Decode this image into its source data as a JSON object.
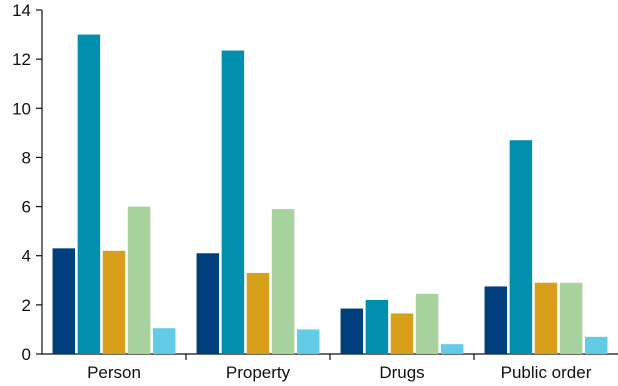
{
  "chart_data": {
    "type": "bar",
    "categories": [
      "Person",
      "Property",
      "Drugs",
      "Public order"
    ],
    "series": [
      {
        "color": "#003f7d",
        "values": [
          4.3,
          4.1,
          1.85,
          2.75
        ]
      },
      {
        "color": "#0090ad",
        "values": [
          13.0,
          12.35,
          2.2,
          8.7
        ]
      },
      {
        "color": "#d8a01a",
        "values": [
          4.2,
          3.3,
          1.65,
          2.9
        ]
      },
      {
        "color": "#a9d39e",
        "values": [
          6.0,
          5.9,
          2.45,
          2.9
        ]
      },
      {
        "color": "#63cbe6",
        "values": [
          1.05,
          1.0,
          0.4,
          0.7
        ]
      }
    ],
    "yticks": [
      "0",
      "2",
      "4",
      "6",
      "8",
      "10",
      "12",
      "14"
    ],
    "ylim": [
      0,
      14
    ],
    "grid": false,
    "title": "",
    "xlabel": "",
    "ylabel": ""
  }
}
